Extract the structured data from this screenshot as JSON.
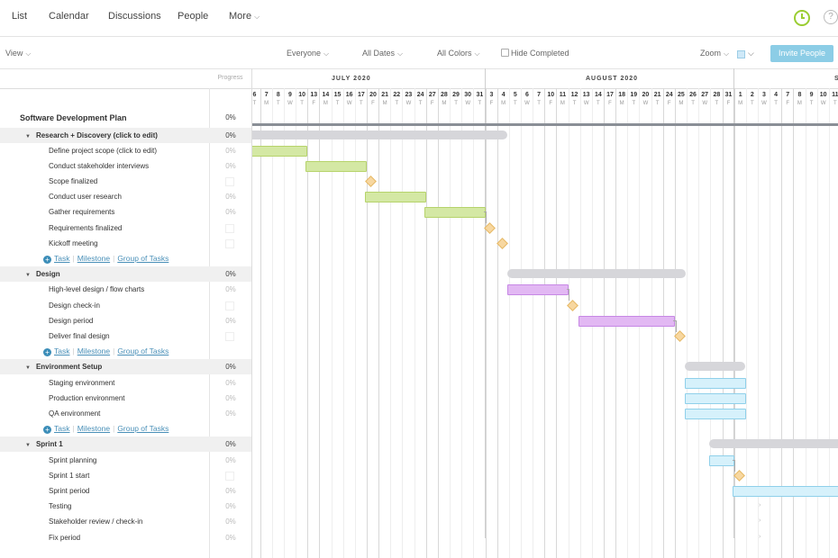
{
  "nav": {
    "items": [
      "List",
      "Calendar",
      "Discussions",
      "People",
      "More"
    ]
  },
  "toolbar": {
    "view": "View",
    "everyone": "Everyone",
    "all_dates": "All Dates",
    "all_colors": "All Colors",
    "hide_completed": "Hide Completed",
    "zoom": "Zoom",
    "invite": "Invite People"
  },
  "columns": {
    "progress": "Progress"
  },
  "months": [
    "JULY 2020",
    "AUGUST 2020",
    "S"
  ],
  "days": [
    "6",
    "7",
    "8",
    "9",
    "10",
    "13",
    "14",
    "15",
    "16",
    "17",
    "20",
    "21",
    "22",
    "23",
    "24",
    "27",
    "28",
    "29",
    "30",
    "31",
    "3",
    "4",
    "5",
    "6",
    "7",
    "10",
    "11",
    "12",
    "13",
    "14",
    "17",
    "18",
    "19",
    "20",
    "21",
    "24",
    "25",
    "26",
    "27",
    "28",
    "31",
    "1",
    "2",
    "3",
    "4",
    "7",
    "8",
    "9",
    "10",
    "11"
  ],
  "daylets": [
    "T",
    "M",
    "T",
    "W",
    "T",
    "F",
    "M",
    "T",
    "W",
    "T",
    "F",
    "M",
    "T",
    "W",
    "T",
    "F",
    "M",
    "T",
    "W",
    "T",
    "F",
    "M",
    "T",
    "W",
    "T",
    "F",
    "M",
    "T",
    "W",
    "T",
    "F",
    "M",
    "T",
    "W",
    "T",
    "F",
    "M",
    "T",
    "W",
    "T",
    "F",
    "M",
    "T",
    "W",
    "T",
    "F",
    "M",
    "T",
    "W",
    "T"
  ],
  "plan": {
    "title": "Software Development Plan",
    "pct": "0%"
  },
  "rows": [
    {
      "type": "group",
      "name": "Research + Discovery (click to edit)",
      "pct": "0%"
    },
    {
      "type": "task",
      "name": "Define project scope (click to edit)",
      "pct": "0%"
    },
    {
      "type": "task",
      "name": "Conduct stakeholder interviews",
      "pct": "0%"
    },
    {
      "type": "milestone",
      "name": "Scope finalized",
      "pct": ""
    },
    {
      "type": "task",
      "name": "Conduct user research",
      "pct": "0%"
    },
    {
      "type": "task",
      "name": "Gather requirements",
      "pct": "0%"
    },
    {
      "type": "milestone",
      "name": "Requirements finalized",
      "pct": ""
    },
    {
      "type": "milestone",
      "name": "Kickoff meeting",
      "pct": ""
    },
    {
      "type": "add"
    },
    {
      "type": "group",
      "name": "Design",
      "pct": "0%"
    },
    {
      "type": "task",
      "name": "High-level design / flow charts",
      "pct": "0%"
    },
    {
      "type": "milestone",
      "name": "Design check-in",
      "pct": ""
    },
    {
      "type": "task",
      "name": "Design period",
      "pct": "0%"
    },
    {
      "type": "milestone",
      "name": "Deliver final design",
      "pct": ""
    },
    {
      "type": "add"
    },
    {
      "type": "group",
      "name": "Environment Setup",
      "pct": "0%"
    },
    {
      "type": "task",
      "name": "Staging environment",
      "pct": "0%"
    },
    {
      "type": "task",
      "name": "Production environment",
      "pct": "0%"
    },
    {
      "type": "task",
      "name": "QA environment",
      "pct": "0%"
    },
    {
      "type": "add"
    },
    {
      "type": "group",
      "name": "Sprint 1",
      "pct": "0%"
    },
    {
      "type": "task",
      "name": "Sprint planning",
      "pct": "0%"
    },
    {
      "type": "milestone",
      "name": "Sprint 1 start",
      "pct": ""
    },
    {
      "type": "task",
      "name": "Sprint period",
      "pct": "0%"
    },
    {
      "type": "task",
      "name": "Testing",
      "pct": "0%"
    },
    {
      "type": "task",
      "name": "Stakeholder review / check-in",
      "pct": "0%"
    },
    {
      "type": "task",
      "name": "Fix period",
      "pct": "0%"
    }
  ],
  "add_links": {
    "task": "Task",
    "milestone": "Milestone",
    "group": "Group of Tasks"
  },
  "colors": {
    "research": "#d4e8a4",
    "design": "#e2b8f3",
    "env": "#d6f1fb",
    "milestone": "#f7d7a0"
  }
}
